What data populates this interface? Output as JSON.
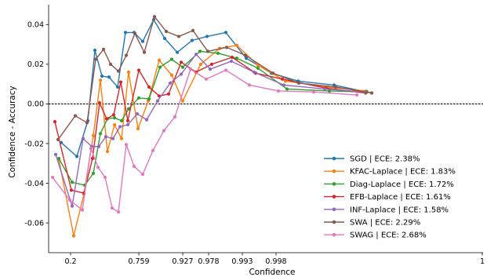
{
  "chart_data": {
    "type": "line",
    "xlabel": "Confidence",
    "ylabel": "Confidence - Accuracy",
    "ylim": [
      -0.075,
      0.05
    ],
    "x_axis_scale": "nonlinear",
    "x_ticks": [
      "0.2",
      "0.759",
      "0.927",
      "0.978",
      "0.993",
      "0.998",
      "1"
    ],
    "y_ticks": [
      "-0.06",
      "-0.04",
      "-0.02",
      "0.00",
      "0.02",
      "0.04"
    ],
    "reference_line": {
      "y": 0,
      "style": "dashed",
      "color": "#000000"
    },
    "grid": false,
    "legend_position": "lower-right",
    "series": [
      {
        "name": "SGD | ECE: 2.38%",
        "color": "#1f77b4",
        "points": [
          [
            78,
            -0.0195
          ],
          [
            98,
            -0.0265
          ],
          [
            112,
            -0.0085
          ],
          [
            121,
            0.027
          ],
          [
            130,
            0.014
          ],
          [
            139,
            0.0135
          ],
          [
            150,
            0.0085
          ],
          [
            160,
            0.036
          ],
          [
            171,
            0.036
          ],
          [
            182,
            0.0315
          ],
          [
            196,
            0.0425
          ],
          [
            210,
            0.033
          ],
          [
            226,
            0.026
          ],
          [
            245,
            0.032
          ],
          [
            264,
            0.034
          ],
          [
            288,
            0.036
          ],
          [
            314,
            0.023
          ],
          [
            346,
            0.0155
          ],
          [
            380,
            0.0115
          ],
          [
            426,
            0.0095
          ],
          [
            474,
            0.0055
          ]
        ]
      },
      {
        "name": "KFAC-Laplace | KFAC-Laplace | ECE: 1.83%",
        "color": "#ff7f0e",
        "points": [
          [
            75,
            -0.028
          ],
          [
            94,
            -0.0665
          ],
          [
            107,
            -0.0455
          ],
          [
            119,
            -0.016
          ],
          [
            128,
            0.012
          ],
          [
            137,
            -0.024
          ],
          [
            146,
            -0.0105
          ],
          [
            155,
            -0.0175
          ],
          [
            164,
            0.016
          ],
          [
            176,
            -0.0125
          ],
          [
            189,
            0.0015
          ],
          [
            203,
            0.022
          ],
          [
            219,
            0.0145
          ],
          [
            233,
            0.0015
          ],
          [
            256,
            0.02
          ],
          [
            280,
            0.028
          ],
          [
            302,
            0.0295
          ],
          [
            329,
            0.0195
          ],
          [
            364,
            0.0115
          ],
          [
            418,
            0.0085
          ],
          [
            467,
            0.0065
          ]
        ]
      },
      {
        "name": "Diag-Laplace | ECE: 1.72%",
        "color": "#2ca02c",
        "points": [
          [
            75,
            -0.0275
          ],
          [
            92,
            -0.0395
          ],
          [
            108,
            -0.041
          ],
          [
            119,
            -0.035
          ],
          [
            128,
            -0.015
          ],
          [
            137,
            -0.0075
          ],
          [
            146,
            -0.007
          ],
          [
            155,
            -0.0085
          ],
          [
            164,
            -0.0025
          ],
          [
            177,
            0.003
          ],
          [
            190,
            0.0025
          ],
          [
            204,
            0.0185
          ],
          [
            219,
            0.0225
          ],
          [
            233,
            0.0185
          ],
          [
            255,
            0.0265
          ],
          [
            278,
            0.0255
          ],
          [
            302,
            0.023
          ],
          [
            329,
            0.018
          ],
          [
            366,
            0.0075
          ],
          [
            420,
            0.0065
          ],
          [
            468,
            0.006
          ]
        ]
      },
      {
        "name": "EFB-Laplace | ECE: 1.61%",
        "color": "#d62728",
        "points": [
          [
            70,
            -0.009
          ],
          [
            91,
            -0.0435
          ],
          [
            107,
            -0.045
          ],
          [
            118,
            -0.0275
          ],
          [
            127,
            0.0005
          ],
          [
            136,
            -0.0075
          ],
          [
            145,
            -0.0055
          ],
          [
            154,
            0.011
          ],
          [
            163,
            -0.0085
          ],
          [
            177,
            0.017
          ],
          [
            190,
            0.0085
          ],
          [
            203,
            0.004
          ],
          [
            215,
            0.005
          ],
          [
            231,
            0.021
          ],
          [
            250,
            0.016
          ],
          [
            270,
            0.02
          ],
          [
            296,
            0.0235
          ],
          [
            326,
            0.0155
          ],
          [
            360,
            0.0125
          ],
          [
            415,
            0.008
          ],
          [
            466,
            0.0055
          ]
        ]
      },
      {
        "name": "INF-Laplace | ECE: 1.58%",
        "color": "#9467bd",
        "points": [
          [
            71,
            -0.0255
          ],
          [
            92,
            -0.0515
          ],
          [
            106,
            -0.0175
          ],
          [
            117,
            -0.0215
          ],
          [
            126,
            -0.0215
          ],
          [
            135,
            -0.0165
          ],
          [
            144,
            -0.0175
          ],
          [
            153,
            -0.0115
          ],
          [
            163,
            -0.0105
          ],
          [
            175,
            -0.005
          ],
          [
            187,
            -0.008
          ],
          [
            201,
            0.0015
          ],
          [
            217,
            0.0105
          ],
          [
            231,
            0.015
          ],
          [
            250,
            0.025
          ],
          [
            268,
            0.0175
          ],
          [
            295,
            0.0215
          ],
          [
            324,
            0.016
          ],
          [
            362,
            0.0095
          ],
          [
            414,
            0.0075
          ],
          [
            465,
            0.006
          ]
        ]
      },
      {
        "name": "SWA | ECE: 2.29%",
        "color": "#8c564b",
        "points": [
          [
            74,
            -0.018
          ],
          [
            96,
            -0.006
          ],
          [
            111,
            -0.0095
          ],
          [
            122,
            0.0225
          ],
          [
            132,
            0.0275
          ],
          [
            141,
            0.02
          ],
          [
            151,
            0.0165
          ],
          [
            161,
            0.0245
          ],
          [
            172,
            0.0355
          ],
          [
            184,
            0.026
          ],
          [
            197,
            0.044
          ],
          [
            212,
            0.0365
          ],
          [
            228,
            0.034
          ],
          [
            246,
            0.037
          ],
          [
            265,
            0.0265
          ],
          [
            289,
            0.0285
          ],
          [
            313,
            0.0245
          ],
          [
            348,
            0.0155
          ],
          [
            381,
            0.0105
          ],
          [
            428,
            0.0085
          ],
          [
            474,
            0.0055
          ]
        ]
      },
      {
        "name": "SWAG | ECE: 2.68%",
        "color": "#e377c2",
        "points": [
          [
            67,
            -0.037
          ],
          [
            89,
            -0.0485
          ],
          [
            105,
            -0.0535
          ],
          [
            116,
            -0.0225
          ],
          [
            125,
            -0.032
          ],
          [
            134,
            -0.037
          ],
          [
            143,
            -0.0525
          ],
          [
            151,
            -0.0545
          ],
          [
            161,
            -0.0205
          ],
          [
            171,
            -0.0315
          ],
          [
            182,
            -0.0355
          ],
          [
            195,
            -0.0235
          ],
          [
            209,
            -0.0135
          ],
          [
            223,
            -0.0065
          ],
          [
            243,
            0.0175
          ],
          [
            263,
            0.0125
          ],
          [
            288,
            0.017
          ],
          [
            318,
            0.0095
          ],
          [
            355,
            0.0065
          ],
          [
            400,
            0.006
          ],
          [
            455,
            0.0045
          ]
        ]
      }
    ]
  }
}
